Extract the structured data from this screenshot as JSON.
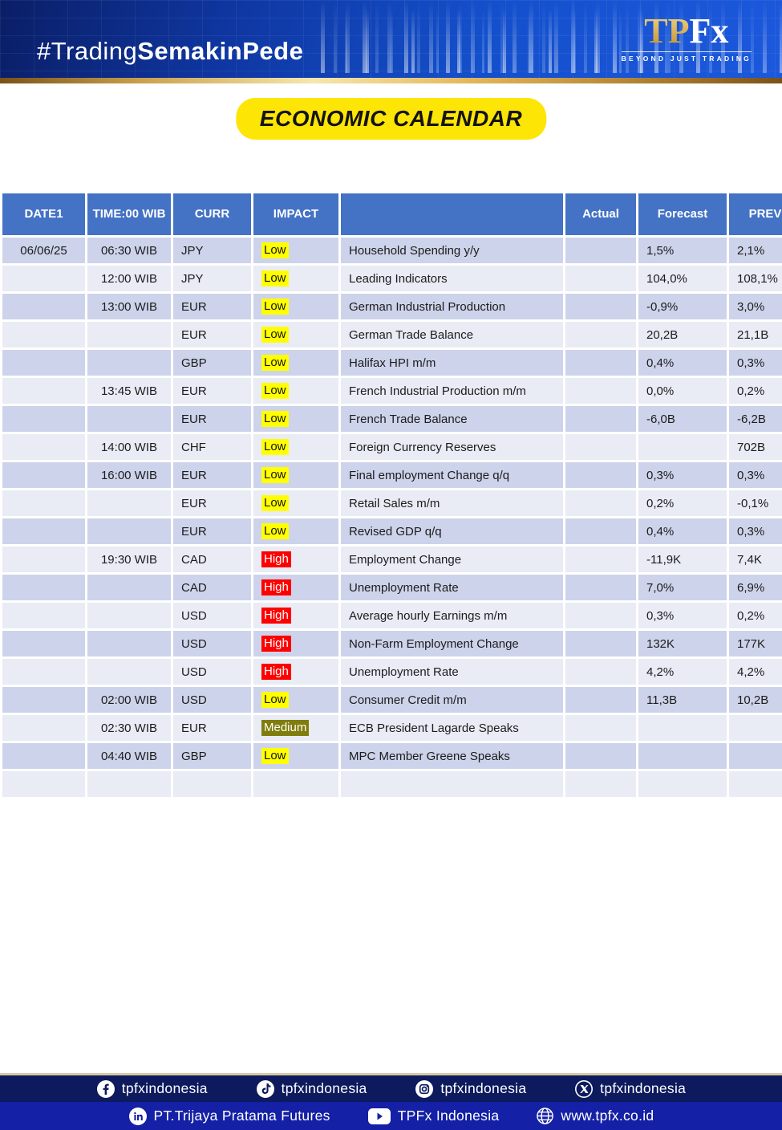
{
  "banner": {
    "hashtag_light": "#Trading",
    "hashtag_bold": "SemakinPede",
    "logo_tp": "TP",
    "logo_fx": "Fx",
    "logo_tagline": "BEYOND JUST TRADING"
  },
  "title": "ECONOMIC CALENDAR",
  "colors": {
    "header_blue": "#4472c4",
    "row_dark": "#cdd3ea",
    "row_light": "#e9ebf5",
    "impact_low_bg": "#ffff00",
    "impact_high_bg": "#ff0000",
    "impact_medium_bg": "#7f7d0b",
    "title_pill_yellow": "#fde506",
    "footer_navy": "#0d1a5e",
    "footer_blue": "#1420a5"
  },
  "chart_data": {
    "type": "table",
    "title": "ECONOMIC CALENDAR",
    "columns": [
      "DATE1",
      "TIME:00 WIB",
      "CURR",
      "IMPACT",
      "",
      "Actual",
      "Forecast",
      "PREV"
    ],
    "rows": [
      {
        "date": "06/06/25",
        "time": "06:30 WIB",
        "curr": "JPY",
        "impact": "Low",
        "event": "Household Spending y/y",
        "actual": "",
        "forecast": "1,5%",
        "prev": "2,1%"
      },
      {
        "date": "",
        "time": "12:00 WIB",
        "curr": "JPY",
        "impact": "Low",
        "event": "Leading Indicators",
        "actual": "",
        "forecast": "104,0%",
        "prev": "108,1%"
      },
      {
        "date": "",
        "time": "13:00 WIB",
        "curr": "EUR",
        "impact": "Low",
        "event": "German Industrial Production",
        "actual": "",
        "forecast": "-0,9%",
        "prev": "3,0%"
      },
      {
        "date": "",
        "time": "",
        "curr": "EUR",
        "impact": "Low",
        "event": "German Trade Balance",
        "actual": "",
        "forecast": "20,2B",
        "prev": "21,1B"
      },
      {
        "date": "",
        "time": "",
        "curr": "GBP",
        "impact": "Low",
        "event": "Halifax HPI m/m",
        "actual": "",
        "forecast": "0,4%",
        "prev": "0,3%"
      },
      {
        "date": "",
        "time": "13:45 WIB",
        "curr": "EUR",
        "impact": "Low",
        "event": "French Industrial Production m/m",
        "actual": "",
        "forecast": "0,0%",
        "prev": "0,2%"
      },
      {
        "date": "",
        "time": "",
        "curr": "EUR",
        "impact": "Low",
        "event": "French Trade Balance",
        "actual": "",
        "forecast": "-6,0B",
        "prev": "-6,2B"
      },
      {
        "date": "",
        "time": "14:00 WIB",
        "curr": "CHF",
        "impact": "Low",
        "event": "Foreign Currency Reserves",
        "actual": "",
        "forecast": "",
        "prev": "702B"
      },
      {
        "date": "",
        "time": "16:00 WIB",
        "curr": "EUR",
        "impact": "Low",
        "event": "Final employment Change q/q",
        "actual": "",
        "forecast": "0,3%",
        "prev": "0,3%"
      },
      {
        "date": "",
        "time": "",
        "curr": "EUR",
        "impact": "Low",
        "event": "Retail Sales m/m",
        "actual": "",
        "forecast": "0,2%",
        "prev": "-0,1%"
      },
      {
        "date": "",
        "time": "",
        "curr": "EUR",
        "impact": "Low",
        "event": "Revised GDP q/q",
        "actual": "",
        "forecast": "0,4%",
        "prev": "0,3%"
      },
      {
        "date": "",
        "time": "19:30 WIB",
        "curr": "CAD",
        "impact": "High",
        "event": "Employment Change",
        "actual": "",
        "forecast": "-11,9K",
        "prev": "7,4K"
      },
      {
        "date": "",
        "time": "",
        "curr": "CAD",
        "impact": "High",
        "event": "Unemployment Rate",
        "actual": "",
        "forecast": "7,0%",
        "prev": "6,9%"
      },
      {
        "date": "",
        "time": "",
        "curr": "USD",
        "impact": "High",
        "event": "Average hourly Earnings m/m",
        "actual": "",
        "forecast": "0,3%",
        "prev": "0,2%"
      },
      {
        "date": "",
        "time": "",
        "curr": "USD",
        "impact": "High",
        "event": "Non-Farm Employment Change",
        "actual": "",
        "forecast": "132K",
        "prev": "177K"
      },
      {
        "date": "",
        "time": "",
        "curr": "USD",
        "impact": "High",
        "event": "Unemployment Rate",
        "actual": "",
        "forecast": "4,2%",
        "prev": "4,2%"
      },
      {
        "date": "",
        "time": "02:00 WIB",
        "curr": "USD",
        "impact": "Low",
        "event": "Consumer Credit m/m",
        "actual": "",
        "forecast": "11,3B",
        "prev": "10,2B"
      },
      {
        "date": "",
        "time": "02:30 WIB",
        "curr": "EUR",
        "impact": "Medium",
        "event": "ECB President Lagarde Speaks",
        "actual": "",
        "forecast": "",
        "prev": ""
      },
      {
        "date": "",
        "time": "04:40 WIB",
        "curr": "GBP",
        "impact": "Low",
        "event": "MPC Member Greene Speaks",
        "actual": "",
        "forecast": "",
        "prev": ""
      },
      {
        "date": "",
        "time": "",
        "curr": "",
        "impact": "",
        "event": "",
        "actual": "",
        "forecast": "",
        "prev": ""
      }
    ]
  },
  "footer": {
    "row1": [
      {
        "icon": "facebook",
        "label": "tpfxindonesia"
      },
      {
        "icon": "tiktok",
        "label": "tpfxindonesia"
      },
      {
        "icon": "instagram",
        "label": "tpfxindonesia"
      },
      {
        "icon": "x",
        "label": "tpfxindonesia"
      }
    ],
    "row2": [
      {
        "icon": "linkedin",
        "label": "PT.Trijaya Pratama Futures"
      },
      {
        "icon": "youtube",
        "label": "TPFx Indonesia"
      },
      {
        "icon": "globe",
        "label": "www.tpfx.co.id"
      }
    ]
  }
}
